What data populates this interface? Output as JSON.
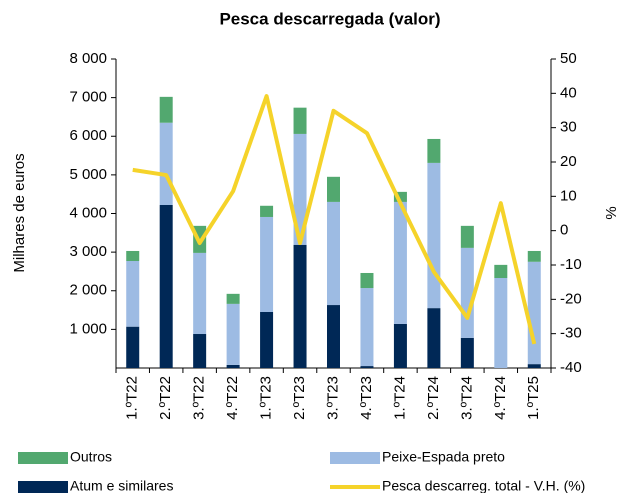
{
  "chart_data": {
    "type": "bar",
    "stacked": true,
    "title": "Pesca descarregada (valor)",
    "y_label": "Milhares de euros",
    "y2_label": "%",
    "categories": [
      "1.ºT22",
      "2.ºT22",
      "3.ºT22",
      "4.ºT22",
      "1.ºT23",
      "2.ºT23",
      "3.ºT23",
      "4.ºT23",
      "1.ºT24",
      "2.ºT24",
      "3.ºT24",
      "4.ºT24",
      "1.ºT25"
    ],
    "series": [
      {
        "name": "Atum e similares",
        "color": "#002856",
        "values": [
          1070,
          4220,
          880,
          80,
          1450,
          3190,
          1630,
          50,
          1140,
          1550,
          780,
          0,
          100
        ]
      },
      {
        "name": "Peixe-Espada preto",
        "color": "#9dbbe3",
        "values": [
          1700,
          2130,
          2100,
          1580,
          2460,
          2870,
          2670,
          2020,
          3160,
          3760,
          2330,
          2330,
          2650
        ]
      },
      {
        "name": "Outros",
        "color": "#52a86f",
        "values": [
          260,
          670,
          700,
          260,
          290,
          680,
          650,
          390,
          260,
          620,
          570,
          340,
          280
        ]
      },
      {
        "name": "Pesca descarreg. total - V.H. (%)",
        "color": "#f5d32a",
        "type": "line",
        "axis": "y2",
        "values": [
          17.7,
          16.2,
          -3.6,
          11.5,
          39.2,
          -3.6,
          34.9,
          28.4,
          8,
          -12,
          -25.4,
          8,
          -33
        ]
      }
    ],
    "ylim": [
      0,
      8000
    ],
    "yticks": [
      {
        "value": 1000,
        "label": "1 000"
      },
      {
        "value": 2000,
        "label": "2 000"
      },
      {
        "value": 3000,
        "label": "3 000"
      },
      {
        "value": 4000,
        "label": "4 000"
      },
      {
        "value": 5000,
        "label": "5 000"
      },
      {
        "value": 6000,
        "label": "6 000"
      },
      {
        "value": 7000,
        "label": "7 000"
      },
      {
        "value": 8000,
        "label": "8 000"
      }
    ],
    "y2lim": [
      -40,
      50
    ],
    "y2ticks": [
      -40,
      -30,
      -20,
      -10,
      0,
      10,
      20,
      30,
      40,
      50
    ]
  }
}
